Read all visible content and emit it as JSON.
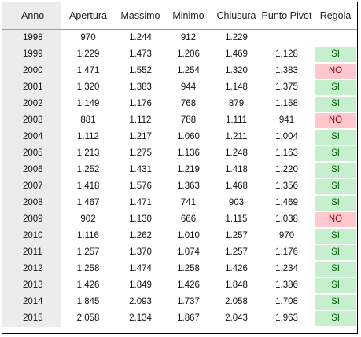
{
  "table": {
    "headers": {
      "year": "Anno",
      "open": "Apertura",
      "max": "Massimo",
      "min": "Minimo",
      "close": "Chiusura",
      "pivot": "Punto Pivot",
      "rule": "Regola"
    },
    "rows": [
      {
        "year": "1998",
        "open": "970",
        "max": "1.244",
        "min": "912",
        "close": "1.229",
        "pivot": "",
        "rule": ""
      },
      {
        "year": "1999",
        "open": "1.229",
        "max": "1.473",
        "min": "1.206",
        "close": "1.469",
        "pivot": "1.128",
        "rule": "SI"
      },
      {
        "year": "2000",
        "open": "1.471",
        "max": "1.552",
        "min": "1.254",
        "close": "1.320",
        "pivot": "1.383",
        "rule": "NO"
      },
      {
        "year": "2001",
        "open": "1.320",
        "max": "1.383",
        "min": "944",
        "close": "1.148",
        "pivot": "1.375",
        "rule": "SI"
      },
      {
        "year": "2002",
        "open": "1.149",
        "max": "1.176",
        "min": "768",
        "close": "879",
        "pivot": "1.158",
        "rule": "SI"
      },
      {
        "year": "2003",
        "open": "881",
        "max": "1.112",
        "min": "788",
        "close": "1.111",
        "pivot": "941",
        "rule": "NO"
      },
      {
        "year": "2004",
        "open": "1.112",
        "max": "1.217",
        "min": "1.060",
        "close": "1.211",
        "pivot": "1.004",
        "rule": "SI"
      },
      {
        "year": "2005",
        "open": "1.213",
        "max": "1.275",
        "min": "1.136",
        "close": "1.248",
        "pivot": "1.163",
        "rule": "SI"
      },
      {
        "year": "2006",
        "open": "1.252",
        "max": "1.431",
        "min": "1.219",
        "close": "1.418",
        "pivot": "1.220",
        "rule": "SI"
      },
      {
        "year": "2007",
        "open": "1.418",
        "max": "1.576",
        "min": "1.363",
        "close": "1.468",
        "pivot": "1.356",
        "rule": "SI"
      },
      {
        "year": "2008",
        "open": "1.467",
        "max": "1.471",
        "min": "741",
        "close": "903",
        "pivot": "1.469",
        "rule": "SI"
      },
      {
        "year": "2009",
        "open": "902",
        "max": "1.130",
        "min": "666",
        "close": "1.115",
        "pivot": "1.038",
        "rule": "NO"
      },
      {
        "year": "2010",
        "open": "1.116",
        "max": "1.262",
        "min": "1.010",
        "close": "1.257",
        "pivot": "970",
        "rule": "SI"
      },
      {
        "year": "2011",
        "open": "1.257",
        "max": "1.370",
        "min": "1.074",
        "close": "1.257",
        "pivot": "1.176",
        "rule": "SI"
      },
      {
        "year": "2012",
        "open": "1.258",
        "max": "1.474",
        "min": "1.258",
        "close": "1.426",
        "pivot": "1.234",
        "rule": "SI"
      },
      {
        "year": "2013",
        "open": "1.426",
        "max": "1.849",
        "min": "1.426",
        "close": "1.848",
        "pivot": "1.386",
        "rule": "SI"
      },
      {
        "year": "2014",
        "open": "1.845",
        "max": "2.093",
        "min": "1.737",
        "close": "2.058",
        "pivot": "1.708",
        "rule": "SI"
      },
      {
        "year": "2015",
        "open": "2.058",
        "max": "2.134",
        "min": "1.867",
        "close": "2.043",
        "pivot": "1.963",
        "rule": "SI"
      }
    ]
  },
  "colors": {
    "si_fill": "#c6efce",
    "si_text": "#006100",
    "no_fill": "#ffc7ce",
    "no_text": "#9c0006",
    "year_column_fill": "#ececec"
  }
}
